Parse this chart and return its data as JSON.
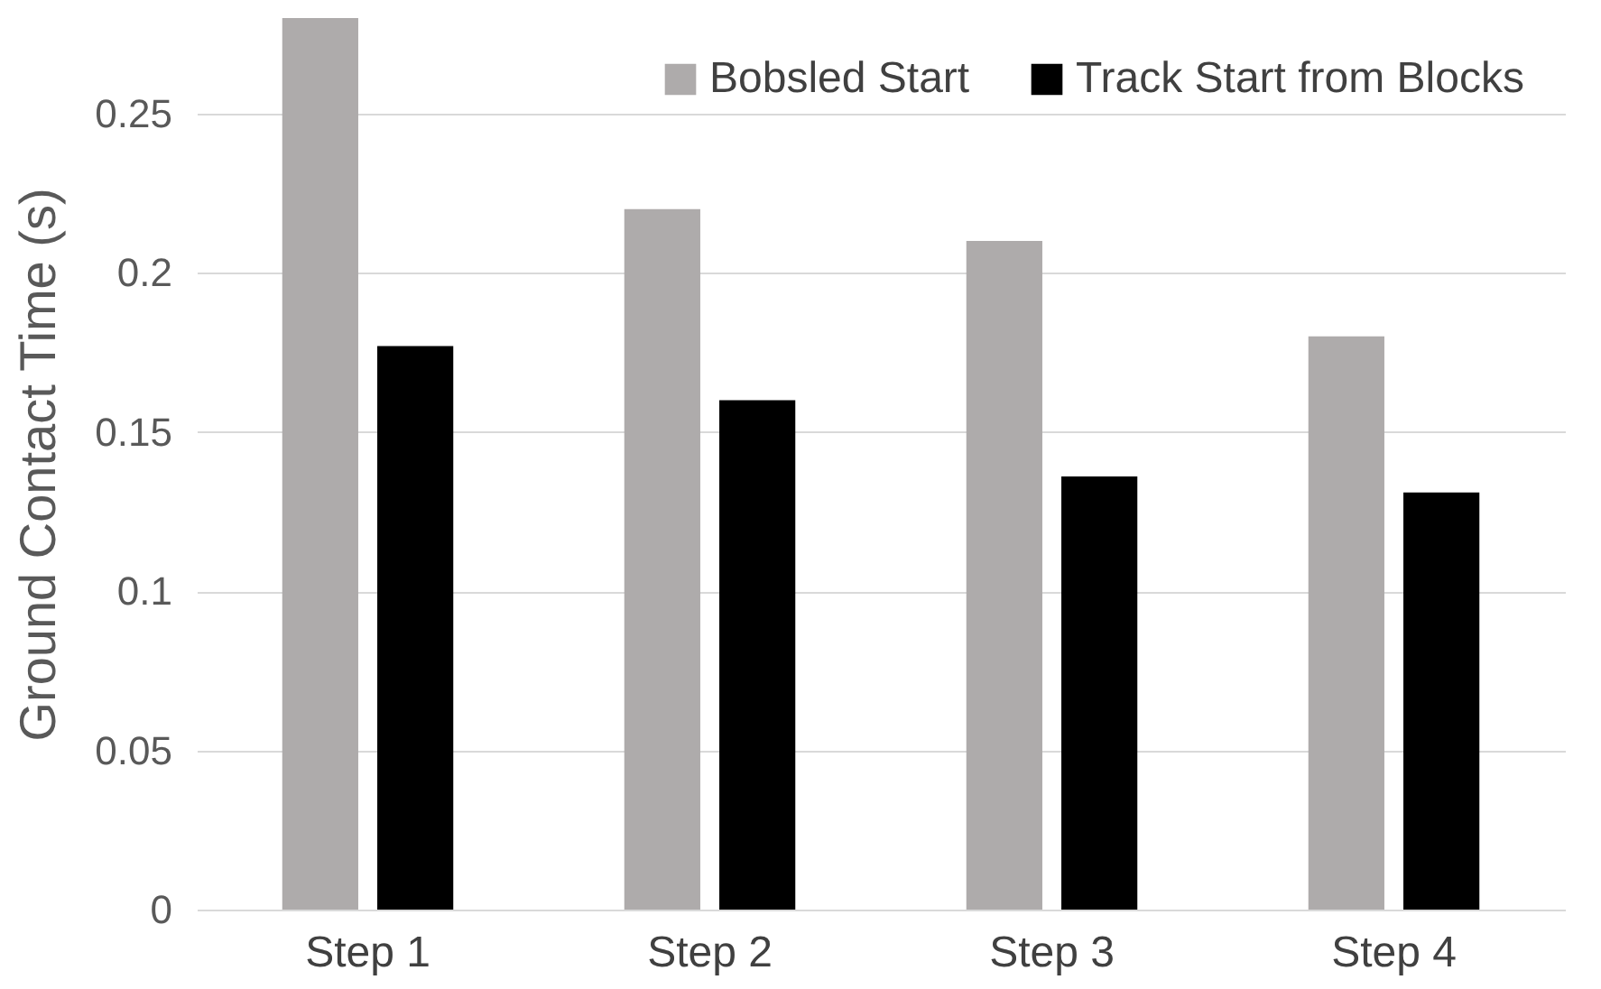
{
  "chart_data": {
    "type": "bar",
    "ylabel": "Ground Contact Time (s)",
    "categories": [
      "Step 1",
      "Step 2",
      "Step 3",
      "Step 4"
    ],
    "series": [
      {
        "name": "Bobsled Start",
        "color": "#aeabab",
        "values": [
          0.28,
          0.22,
          0.21,
          0.18
        ]
      },
      {
        "name": "Track Start from Blocks",
        "color": "#000000",
        "values": [
          0.177,
          0.16,
          0.136,
          0.131
        ]
      }
    ],
    "ylim": [
      0,
      0.28
    ],
    "yticks": [
      0,
      0.05,
      0.1,
      0.15,
      0.2,
      0.25
    ],
    "grid": "y",
    "legend": "top right"
  }
}
